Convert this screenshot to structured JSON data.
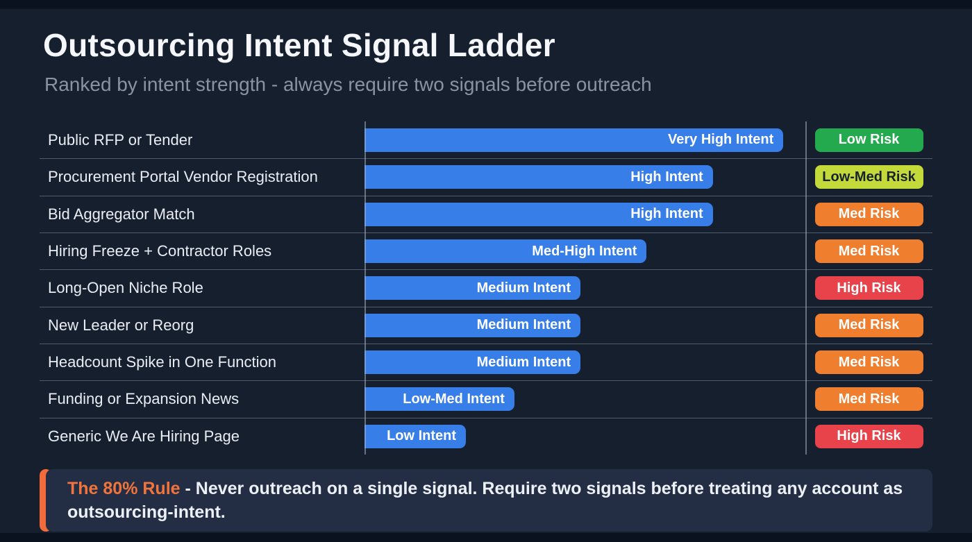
{
  "header": {
    "title": "Outsourcing Intent Signal Ladder",
    "subtitle": "Ranked by intent strength - always require two signals before outreach"
  },
  "colors": {
    "background": "#161F2E",
    "edge": "#0A1220",
    "bar_blue": "#377EE8",
    "green": "#23A94E",
    "yellow_green": "#C4D93A",
    "orange": "#F07E2F",
    "red": "#E8434B",
    "callout_bg": "#232E44",
    "callout_accent": "#F26B3C",
    "divider": "rgba(150,163,182,0.45)"
  },
  "chart_data": {
    "type": "bar",
    "orientation": "horizontal",
    "title": "Outsourcing Intent Signal Ladder",
    "subtitle": "Ranked by intent strength - always require two signals before outreach",
    "categories": [
      "Public RFP or Tender",
      "Procurement Portal Vendor Registration",
      "Bid Aggregator Match",
      "Hiring Freeze + Contractor Roles",
      "Long-Open Niche Role",
      "New Leader or Reorg",
      "Headcount Spike in One Function",
      "Funding or Expansion News",
      "Generic We Are Hiring Page"
    ],
    "values": [
      95,
      79,
      79,
      64,
      49,
      49,
      49,
      34,
      23
    ],
    "value_unit": "intent strength, % of scale (estimated from bar lengths)",
    "bar_labels": [
      "Very High Intent",
      "High Intent",
      "High Intent",
      "Med-High Intent",
      "Medium Intent",
      "Medium Intent",
      "Medium Intent",
      "Low-Med Intent",
      "Low Intent"
    ],
    "bar_color": "#377EE8",
    "risk_badges": [
      {
        "label": "Low Risk",
        "bg": "#23A94E",
        "text": "#FFFFFF"
      },
      {
        "label": "Low-Med Risk",
        "bg": "#C4D93A",
        "text": "#18222F"
      },
      {
        "label": "Med Risk",
        "bg": "#F07E2F",
        "text": "#FFFFFF"
      },
      {
        "label": "Med Risk",
        "bg": "#F07E2F",
        "text": "#FFFFFF"
      },
      {
        "label": "High Risk",
        "bg": "#E8434B",
        "text": "#FFFFFF"
      },
      {
        "label": "Med Risk",
        "bg": "#F07E2F",
        "text": "#FFFFFF"
      },
      {
        "label": "Med Risk",
        "bg": "#F07E2F",
        "text": "#FFFFFF"
      },
      {
        "label": "Med Risk",
        "bg": "#F07E2F",
        "text": "#FFFFFF"
      },
      {
        "label": "High Risk",
        "bg": "#E8434B",
        "text": "#FFFFFF"
      }
    ],
    "xlim": [
      0,
      100
    ],
    "grid": false,
    "legend": false
  },
  "callout": {
    "highlight": "The 80% Rule",
    "text": " - Never outreach on a single signal. Require two signals before treating any account as outsourcing-intent."
  }
}
